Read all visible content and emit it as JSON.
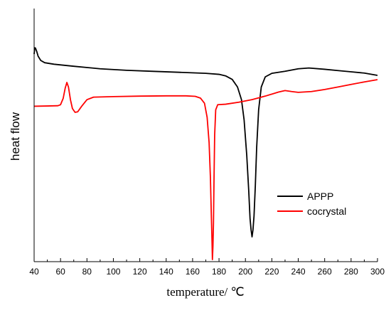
{
  "chart_data": {
    "type": "line",
    "xlabel": "temperature/ ℃",
    "ylabel": "heat flow",
    "xlim": [
      40,
      300
    ],
    "xticks": [
      40,
      60,
      80,
      100,
      120,
      140,
      160,
      180,
      200,
      220,
      240,
      260,
      280,
      300
    ],
    "ylim": [
      0,
      100
    ],
    "yticks_shown": false,
    "grid": false,
    "legend_position": "bottom-right",
    "series": [
      {
        "name": "APPP",
        "color": "#000000",
        "points": [
          [
            40,
            82
          ],
          [
            40.5,
            84.5
          ],
          [
            41,
            84.4
          ],
          [
            42,
            83
          ],
          [
            43,
            81.2
          ],
          [
            45,
            79.5
          ],
          [
            48,
            78.6
          ],
          [
            55,
            78.0
          ],
          [
            70,
            77.2
          ],
          [
            90,
            76.2
          ],
          [
            110,
            75.6
          ],
          [
            130,
            75.2
          ],
          [
            150,
            74.8
          ],
          [
            170,
            74.4
          ],
          [
            180,
            74.0
          ],
          [
            185,
            73.4
          ],
          [
            190,
            72.0
          ],
          [
            194,
            69.0
          ],
          [
            197,
            64.0
          ],
          [
            199,
            56.0
          ],
          [
            201,
            42.0
          ],
          [
            202.5,
            28.0
          ],
          [
            203.5,
            17.0
          ],
          [
            204.3,
            12.5
          ],
          [
            205,
            9.8
          ],
          [
            205.7,
            12.5
          ],
          [
            206.5,
            18.0
          ],
          [
            207.5,
            30.0
          ],
          [
            208.5,
            45.0
          ],
          [
            210,
            60.0
          ],
          [
            212,
            69.0
          ],
          [
            215,
            73.0
          ],
          [
            220,
            74.4
          ],
          [
            230,
            75.2
          ],
          [
            240,
            76.2
          ],
          [
            248,
            76.5
          ],
          [
            260,
            76.0
          ],
          [
            270,
            75.5
          ],
          [
            280,
            75.0
          ],
          [
            290,
            74.5
          ],
          [
            300,
            73.6
          ]
        ]
      },
      {
        "name": "cocrystal",
        "color": "#ff0000",
        "points": [
          [
            40,
            61.4
          ],
          [
            50,
            61.5
          ],
          [
            58,
            61.6
          ],
          [
            60,
            62.0
          ],
          [
            62,
            64.5
          ],
          [
            63.5,
            68.5
          ],
          [
            64.8,
            70.8
          ],
          [
            66,
            69.0
          ],
          [
            67.5,
            64.0
          ],
          [
            69,
            60.5
          ],
          [
            71,
            59.0
          ],
          [
            73,
            59.2
          ],
          [
            76,
            61.4
          ],
          [
            80,
            64.0
          ],
          [
            85,
            65.0
          ],
          [
            100,
            65.2
          ],
          [
            120,
            65.4
          ],
          [
            140,
            65.5
          ],
          [
            155,
            65.5
          ],
          [
            162,
            65.3
          ],
          [
            166,
            64.6
          ],
          [
            169,
            62.6
          ],
          [
            171,
            57.0
          ],
          [
            172.5,
            47.0
          ],
          [
            173.5,
            33.0
          ],
          [
            174.2,
            18.0
          ],
          [
            174.7,
            8.0
          ],
          [
            175,
            0.8
          ],
          [
            175.4,
            6.0
          ],
          [
            175.8,
            15.0
          ],
          [
            176.2,
            32.0
          ],
          [
            176.7,
            50.0
          ],
          [
            177.5,
            60.0
          ],
          [
            179,
            62.0
          ],
          [
            185,
            62.2
          ],
          [
            195,
            63.0
          ],
          [
            205,
            64.0
          ],
          [
            215,
            65.4
          ],
          [
            225,
            67.0
          ],
          [
            230,
            67.6
          ],
          [
            235,
            67.2
          ],
          [
            240,
            66.9
          ],
          [
            250,
            67.2
          ],
          [
            260,
            68.0
          ],
          [
            270,
            69.0
          ],
          [
            280,
            70.0
          ],
          [
            290,
            71.0
          ],
          [
            300,
            71.9
          ]
        ]
      }
    ]
  }
}
